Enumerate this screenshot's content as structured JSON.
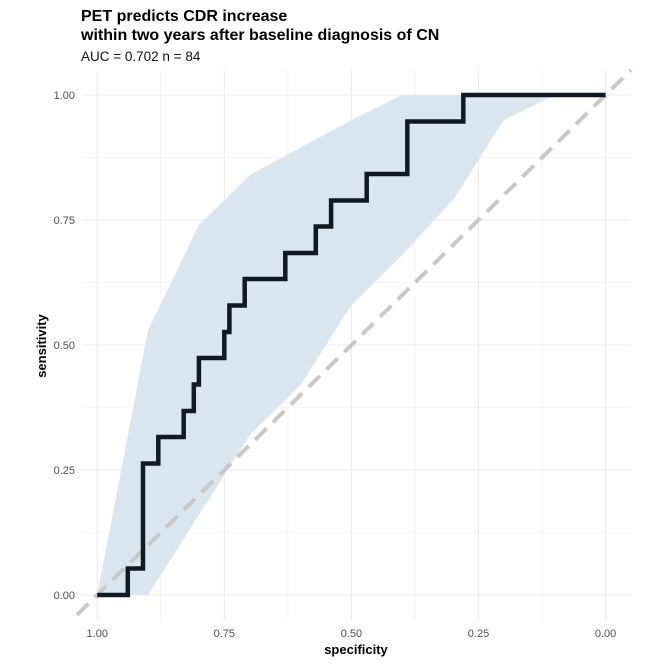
{
  "chart_data": {
    "type": "line",
    "title_lines": [
      "PET predicts CDR increase",
      "within two years after baseline diagnosis of CN"
    ],
    "subtitle": "AUC =  0.702 n =  84",
    "xlabel": "specificity",
    "ylabel": "sensitivity",
    "xlim": [
      1.03,
      -0.05
    ],
    "x_reversed": true,
    "ylim": [
      -0.05,
      1.05
    ],
    "x_ticks": [
      1.0,
      0.75,
      0.5,
      0.25,
      0.0
    ],
    "x_tick_labels": [
      "1.00",
      "0.75",
      "0.50",
      "0.25",
      "0.00"
    ],
    "y_ticks": [
      0.0,
      0.25,
      0.5,
      0.75,
      1.0
    ],
    "y_tick_labels": [
      "0.00",
      "0.25",
      "0.50",
      "0.75",
      "1.00"
    ],
    "grid": true,
    "colors": {
      "roc": "#111a22",
      "ci_band": "#d9e6f0",
      "reference": "#c8c8c8",
      "grid": "#ebebeb"
    },
    "series": [
      {
        "kind": "roc_step",
        "specificity": [
          1.0,
          0.94,
          0.94,
          0.91,
          0.91,
          0.88,
          0.88,
          0.83,
          0.83,
          0.81,
          0.81,
          0.8,
          0.8,
          0.75,
          0.75,
          0.74,
          0.74,
          0.71,
          0.71,
          0.63,
          0.63,
          0.57,
          0.57,
          0.54,
          0.54,
          0.47,
          0.47,
          0.39,
          0.39,
          0.28,
          0.28,
          0.0
        ],
        "sensitivity": [
          0.0,
          0.0,
          0.053,
          0.053,
          0.263,
          0.263,
          0.316,
          0.316,
          0.368,
          0.368,
          0.421,
          0.421,
          0.474,
          0.474,
          0.526,
          0.526,
          0.579,
          0.579,
          0.632,
          0.632,
          0.684,
          0.684,
          0.737,
          0.737,
          0.789,
          0.789,
          0.842,
          0.842,
          0.947,
          0.947,
          1.0,
          1.0
        ]
      },
      {
        "kind": "ci_band",
        "specificity": [
          1.0,
          0.9,
          0.8,
          0.7,
          0.6,
          0.5,
          0.4,
          0.3,
          0.2,
          0.1,
          0.0
        ],
        "lower": [
          0.0,
          0.0,
          0.16,
          0.32,
          0.42,
          0.58,
          0.68,
          0.79,
          0.95,
          1.0,
          1.0
        ],
        "upper": [
          0.0,
          0.53,
          0.74,
          0.84,
          0.895,
          0.95,
          1.0,
          1.0,
          1.0,
          1.0,
          1.0
        ]
      },
      {
        "kind": "reference",
        "specificity": [
          1.04,
          -0.05
        ],
        "sensitivity": [
          -0.04,
          1.05
        ]
      }
    ]
  }
}
